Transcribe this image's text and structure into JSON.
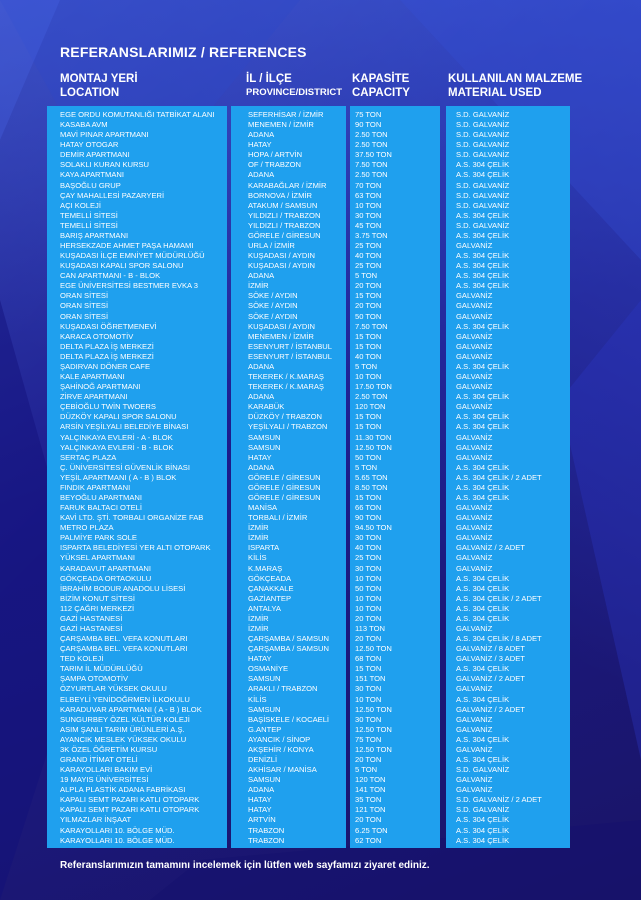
{
  "title": "REFERANSLARIMIZ / REFERENCES",
  "headers": {
    "location": [
      "MONTAJ YERİ",
      "LOCATION"
    ],
    "province": [
      "İL / İLÇE",
      "PROVINCE/DISTRICT"
    ],
    "capacity": [
      "KAPASİTE",
      "CAPACITY"
    ],
    "material": [
      "KULLANILAN MALZEME",
      "MATERIAL USED"
    ]
  },
  "rows": [
    [
      "EGE ORDU KOMUTANLIĞI TATBİKAT ALANI",
      "SEFERHİSAR / İZMİR",
      "75 TON",
      "S.D. GALVANİZ"
    ],
    [
      "KASABA AVM",
      "MENEMEN / İZMİR",
      "90 TON",
      "S.D. GALVANİZ"
    ],
    [
      "MAVİ PINAR APARTMANI",
      "ADANA",
      "2.50 TON",
      "S.D. GALVANİZ"
    ],
    [
      "HATAY OTOGAR",
      "HATAY",
      "2.50 TON",
      "S.D. GALVANİZ"
    ],
    [
      "DEMİR APARTMANI",
      "HOPA / ARTVİN",
      "37.50 TON",
      "S.D. GALVANİZ"
    ],
    [
      "SOLAKLI KURAN KURSU",
      "OF / TRABZON",
      "7.50 TON",
      "A.S. 304 ÇELİK"
    ],
    [
      "KAYA APARTMANI",
      "ADANA",
      "2.50 TON",
      "A.S. 304 ÇELİK"
    ],
    [
      "BAŞOĞLU GRUP",
      "KARABAĞLAR / İZMİR",
      "70 TON",
      "S.D. GALVANİZ"
    ],
    [
      "ÇAY MAHALLESİ PAZARYERİ",
      "BORNOVA / İZMİR",
      "63 TON",
      "S.D. GALVANİZ"
    ],
    [
      "AÇI KOLEJİ",
      "ATAKUM / SAMSUN",
      "10 TON",
      "S.D. GALVANİZ"
    ],
    [
      "TEMELLİ SİTESİ",
      "YILDIZLI / TRABZON",
      "30 TON",
      "A.S. 304 ÇELİK"
    ],
    [
      "TEMELLİ SİTESİ",
      "YILDIZLI / TRABZON",
      "45 TON",
      "S.D. GALVANİZ"
    ],
    [
      "BARIŞ APARTMANI",
      "GÖRELE / GİRESUN",
      "3.75 TON",
      "A.S. 304 ÇELİK"
    ],
    [
      "HERSEKZADE AHMET PAŞA HAMAMI",
      "URLA / İZMİR",
      "25 TON",
      "GALVANİZ"
    ],
    [
      "KUŞADASI İLÇE EMNİYET MÜDÜRLÜĞÜ",
      "KUŞADASI / AYDIN",
      "40 TON",
      "A.S. 304 ÇELİK"
    ],
    [
      "KUŞADASI KAPALI SPOR SALONU",
      "KUŞADASI / AYDIN",
      "25 TON",
      "A.S. 304 ÇELİK"
    ],
    [
      "CAN APARTMANI - B - BLOK",
      "ADANA",
      "5 TON",
      "A.S. 304 ÇELİK"
    ],
    [
      "EGE ÜNİVERSİTESİ BESTMER EVKA 3",
      "İZMİR",
      "20 TON",
      "A.S. 304 ÇELİK"
    ],
    [
      "ORAN SİTESİ",
      "SÖKE / AYDIN",
      "15 TON",
      "GALVANİZ"
    ],
    [
      "ORAN SİTESİ",
      "SÖKE / AYDIN",
      "20 TON",
      "GALVANİZ"
    ],
    [
      "ORAN SİTESİ",
      "SÖKE / AYDIN",
      "50 TON",
      "GALVANİZ"
    ],
    [
      "KUŞADASI ÖĞRETMENEVİ",
      "KUŞADASI / AYDIN",
      "7.50 TON",
      "A.S. 304 ÇELİK"
    ],
    [
      "KARACA OTOMOTİV",
      "MENEMEN / İZMİR",
      "15 TON",
      "GALVANİZ"
    ],
    [
      "DELTA PLAZA İŞ MERKEZİ",
      "ESENYURT / İSTANBUL",
      "15 TON",
      "GALVANİZ"
    ],
    [
      "DELTA PLAZA İŞ MERKEZİ",
      "ESENYURT / İSTANBUL",
      "40 TON",
      "GALVANİZ"
    ],
    [
      "ŞADIRVAN DÖNER CAFE",
      "ADANA",
      "5 TON",
      "A.S. 304 ÇELİK"
    ],
    [
      "KALE APARTMANI",
      "TEKEREK / K.MARAŞ",
      "10 TON",
      "GALVANİZ"
    ],
    [
      "ŞAHİNOĞ APARTMANI",
      "TEKEREK / K.MARAŞ",
      "17.50 TON",
      "GALVANİZ"
    ],
    [
      "ZİRVE APARTMANI",
      "ADANA",
      "2.50 TON",
      "A.S. 304 ÇELİK"
    ],
    [
      "ÇEBİOĞLU TWİN TWOERS",
      "KARABÜK",
      "120 TON",
      "GALVANİZ"
    ],
    [
      "DÜZKÖY KAPALI SPOR SALONU",
      "DÜZKÖY / TRABZON",
      "15 TON",
      "A.S. 304 ÇELİK"
    ],
    [
      "ARSİN YEŞİLYALI BELEDİYE BİNASI",
      "YEŞİLYALI / TRABZON",
      "15 TON",
      "A.S. 304 ÇELİK"
    ],
    [
      "YALÇINKAYA EVLERİ - A - BLOK",
      "SAMSUN",
      "11.30 TON",
      "GALVANİZ"
    ],
    [
      "YALÇINKAYA EVLERİ - B - BLOK",
      "SAMSUN",
      "12.50 TON",
      "GALVANİZ"
    ],
    [
      "SERTAÇ PLAZA",
      "HATAY",
      "50 TON",
      "GALVANİZ"
    ],
    [
      "Ç. ÜNİVERSİTESİ GÜVENLİK BİNASI",
      "ADANA",
      "5 TON",
      "A.S. 304 ÇELİK"
    ],
    [
      "YEŞİL APARTMANI ( A - B ) BLOK",
      "GÖRELE / GİRESUN",
      "5.65 TON",
      "A.S. 304 ÇELİK / 2 ADET"
    ],
    [
      "FINDIK APARTMANI",
      "GÖRELE / GİRESUN",
      "8.50 TON",
      "A.S. 304 ÇELİK"
    ],
    [
      "BEYOĞLU APARTMANI",
      "GÖRELE / GİRESUN",
      "15 TON",
      "A.S. 304 ÇELİK"
    ],
    [
      "FARUK BALTACI OTELİ",
      "MANİSA",
      "66 TON",
      "GALVANİZ"
    ],
    [
      "KAVİ LTD. ŞTİ. TORBALI ORGANİZE FAB",
      "TORBALI / İZMİR",
      "90 TON",
      "GALVANİZ"
    ],
    [
      "METRO PLAZA",
      "İZMİR",
      "94.50 TON",
      "GALVANİZ"
    ],
    [
      "PALMİYE PARK SOLE",
      "İZMİR",
      "30 TON",
      "GALVANİZ"
    ],
    [
      "ISPARTA BELEDİYESİ YER ALTI OTOPARK",
      "ISPARTA",
      "40 TON",
      "GALVANİZ / 2 ADET"
    ],
    [
      "YÜKSEL APARTMANI",
      "KİLİS",
      "25 TON",
      "GALVANİZ"
    ],
    [
      "KARADAVUT APARTMANI",
      "K.MARAŞ",
      "30 TON",
      "GALVANİZ"
    ],
    [
      "GÖKÇEADA ORTAOKULU",
      "GÖKÇEADA",
      "10 TON",
      "A.S. 304 ÇELİK"
    ],
    [
      "İBRAHİM BODUR ANADOLU LİSESİ",
      "ÇANAKKALE",
      "50 TON",
      "A.S. 304 ÇELİK"
    ],
    [
      "BİZİM KONUT SİTESİ",
      "GAZİANTEP",
      "10 TON",
      "A.S. 304 ÇELİK / 2 ADET"
    ],
    [
      "112 ÇAĞRI MERKEZİ",
      "ANTALYA",
      "10 TON",
      "A.S. 304 ÇELİK"
    ],
    [
      "GAZİ HASTANESİ",
      "İZMİR",
      "20 TON",
      "A.S. 304 ÇELİK"
    ],
    [
      "GAZİ HASTANESİ",
      "İZMİR",
      "113 TON",
      "GALVANİZ"
    ],
    [
      "ÇARŞAMBA BEL. VEFA KONUTLARI",
      "ÇARŞAMBA / SAMSUN",
      "20 TON",
      "A.S. 304 ÇELİK / 8 ADET"
    ],
    [
      "ÇARŞAMBA BEL. VEFA KONUTLARI",
      "ÇARŞAMBA / SAMSUN",
      "12.50 TON",
      "GALVANİZ / 8 ADET"
    ],
    [
      "TED KOLEJİ",
      "HATAY",
      "68 TON",
      "GALVANİZ / 3 ADET"
    ],
    [
      "TARIM İL MÜDÜRLÜĞÜ",
      "OSMANİYE",
      "15 TON",
      "A.S. 304 ÇELİK"
    ],
    [
      "ŞAMPA OTOMOTİV",
      "SAMSUN",
      "151 TON",
      "GALVANİZ / 2 ADET"
    ],
    [
      "ÖZYURTLAR YÜKSEK OKULU",
      "ARAKLI / TRABZON",
      "30 TON",
      "GALVANİZ"
    ],
    [
      "ELBEYLİ YENİDOĞRMEN İLKOKULU",
      "KİLİS",
      "10 TON",
      "A.S. 304 ÇELİK"
    ],
    [
      "KARADUVAR APARTMANI ( A - B ) BLOK",
      "SAMSUN",
      "12.50 TON",
      "GALVANİZ / 2 ADET"
    ],
    [
      "SUNGURBEY ÖZEL KÜLTÜR KOLEJİ",
      "BAŞİSKELE / KOCAELİ",
      "30 TON",
      "GALVANİZ"
    ],
    [
      "ASIM ŞANLI TARIM ÜRÜNLERİ A.Ş.",
      "G.ANTEP",
      "12.50 TON",
      "GALVANİZ"
    ],
    [
      "AYANCIK MESLEK YÜKSEK OKULU",
      "AYANCIK / SİNOP",
      "75 TON",
      "A.S. 304 ÇELİK"
    ],
    [
      "3K ÖZEL ÖĞRETİM KURSU",
      "AKŞEHİR / KONYA",
      "12.50 TON",
      "GALVANİZ"
    ],
    [
      "GRAND İTİMAT OTELİ",
      "DENİZLİ",
      "20 TON",
      "A.S. 304 ÇELİK"
    ],
    [
      "KARAYOLLARI BAKIM EVİ",
      "AKHİSAR / MANİSA",
      "5 TON",
      "S.D. GALVANİZ"
    ],
    [
      "19 MAYIS ÜNİVERSİTESİ",
      "SAMSUN",
      "120 TON",
      "GALVANİZ"
    ],
    [
      "ALPLA PLASTİK ADANA FABRİKASI",
      "ADANA",
      "141 TON",
      "GALVANİZ"
    ],
    [
      "KAPALI SEMT PAZARI KATLI OTOPARK",
      "HATAY",
      "35 TON",
      "S.D. GALVANİZ / 2 ADET"
    ],
    [
      "KAPALI SEMT PAZARI KATLI OTOPARK",
      "HATAY",
      "121 TON",
      "S.D. GALVANİZ"
    ],
    [
      "YILMAZLAR İNŞAAT",
      "ARTVİN",
      "20 TON",
      "A.S. 304 ÇELİK"
    ],
    [
      "KARAYOLLARI 10. BÖLGE MÜD.",
      "TRABZON",
      "6.25 TON",
      "A.S. 304 ÇELİK"
    ],
    [
      "KARAYOLLARI 10. BÖLGE MÜD.",
      "TRABZON",
      "62 TON",
      "A.S. 304 ÇELİK"
    ]
  ],
  "footer": "Referanslarımızın tamamını incelemek için lütfen web sayfamızı ziyaret ediniz."
}
